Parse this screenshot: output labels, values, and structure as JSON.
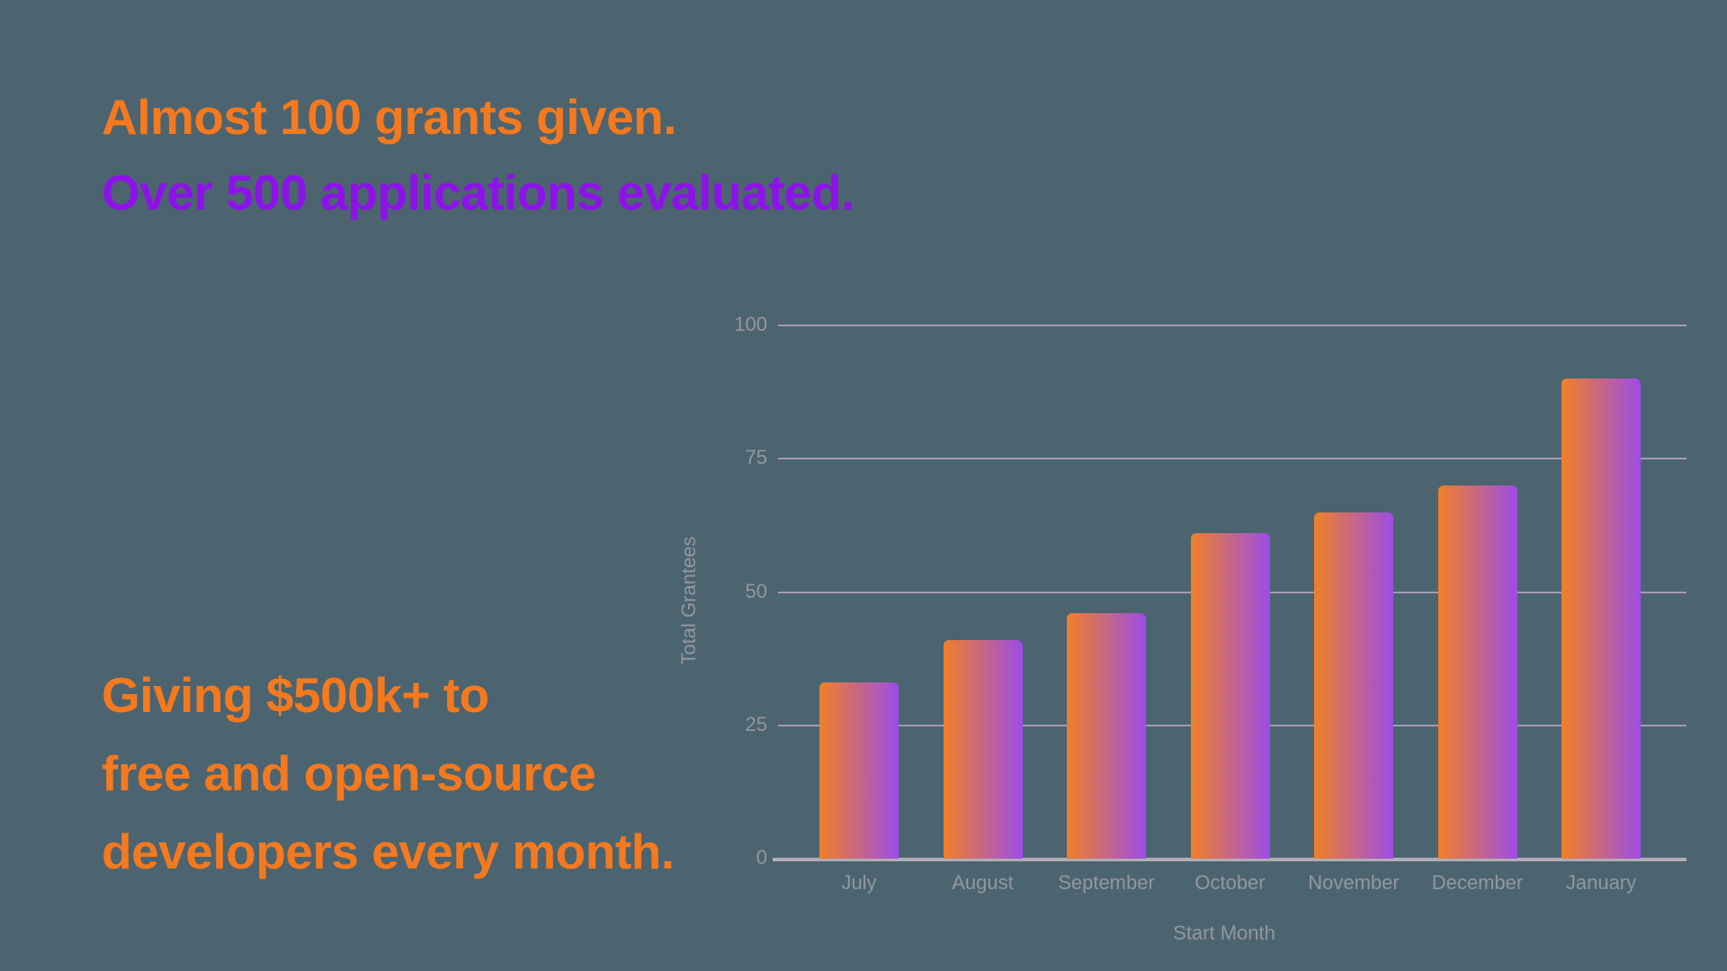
{
  "background_color": "#4c6470",
  "headline": {
    "line1": "Almost 100 grants given.",
    "line2": "Over 500 applications evaluated."
  },
  "subheadline": {
    "line1": "Giving $500k+ to",
    "line2": "free and open-source",
    "line3": "developers every month."
  },
  "colors": {
    "orange_text": "#f4791f",
    "purple_text": "#8d12ea",
    "bar_gradient_start": "#f08027",
    "bar_gradient_end": "#9d4ce8",
    "gridline": "#a49ab4",
    "axis_line": "#b1adb5",
    "chart_label": "#91989e"
  },
  "chart_data": {
    "type": "bar",
    "categories": [
      "July",
      "August",
      "September",
      "October",
      "November",
      "December",
      "January"
    ],
    "values": [
      33,
      41,
      46,
      61,
      65,
      70,
      90
    ],
    "title": "",
    "xlabel": "Start Month",
    "ylabel": "Total Grantees",
    "ylim": [
      0,
      100
    ],
    "yticks": [
      0,
      25,
      50,
      75,
      100
    ],
    "grid": true,
    "legend": false,
    "bar_orientation": "vertical",
    "bar_fill": "horizontal gradient orange to purple"
  }
}
